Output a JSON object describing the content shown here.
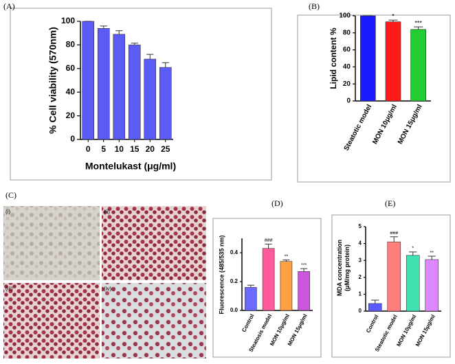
{
  "chart_data": [
    {
      "type": "bar",
      "panel": "(A)",
      "ylabel": "% Cell viability (570nm)",
      "xlabel": "Montelukast (μg/ml)",
      "categories": [
        "0",
        "5",
        "10",
        "15",
        "20",
        "25"
      ],
      "values": [
        100,
        94,
        89,
        80,
        68,
        61
      ],
      "errors": [
        0,
        2,
        3,
        1.5,
        4,
        4
      ],
      "color": "#5b5bf5",
      "ylim": [
        0,
        100
      ],
      "yticks": [
        0,
        20,
        40,
        60,
        80,
        100
      ]
    },
    {
      "type": "bar",
      "panel": "(B)",
      "ylabel": "Lipid content %",
      "categories": [
        "Steatotic model",
        "MON 10μg/ml",
        "MON 15μg/ml"
      ],
      "values": [
        100,
        93,
        84
      ],
      "errors": [
        0,
        2,
        3
      ],
      "colors": [
        "#1a1aff",
        "#ff1a1a",
        "#22cc33"
      ],
      "annotations": [
        null,
        "*",
        "***"
      ],
      "ylim": [
        0,
        100
      ],
      "yticks": [
        0,
        20,
        40,
        60,
        80,
        100
      ]
    },
    {
      "type": "bar",
      "panel": "(D)",
      "ylabel": "Fluorescence (485/535 nm)",
      "categories": [
        "Control",
        "Steatosis model",
        "MON 10μg/ml",
        "MON 15μg/ml"
      ],
      "values": [
        0.16,
        0.43,
        0.34,
        0.27
      ],
      "errors": [
        0.015,
        0.03,
        0.01,
        0.02
      ],
      "colors": [
        "#6a6aff",
        "#ff5a9a",
        "#ffa040",
        "#cc55dd"
      ],
      "annotations": [
        null,
        "###",
        "**",
        "***"
      ],
      "ylim": [
        0,
        0.5
      ],
      "yticks": [
        {
          "value": 0,
          "label": "0.0"
        },
        0.2,
        0.4
      ]
    },
    {
      "type": "bar",
      "panel": "(E)",
      "ylabel": [
        "MDA concentration",
        "(μM/mg protein)"
      ],
      "categories": [
        "Control",
        "Steatotic model",
        "MON 10μg/ml",
        "MON 15μg/ml"
      ],
      "values": [
        0.45,
        4.1,
        3.3,
        3.05
      ],
      "errors": [
        0.2,
        0.3,
        0.2,
        0.2
      ],
      "colors": [
        "#5a5aff",
        "#ff7f7f",
        "#40e0b0",
        "#dd88ff"
      ],
      "annotations": [
        null,
        "###",
        "*",
        "**"
      ],
      "ylim": [
        0,
        5
      ],
      "yticks": [
        0,
        1,
        2,
        3,
        4,
        5
      ]
    }
  ],
  "image_panel": {
    "label": "(C)",
    "images": [
      "(i)",
      "(ii)",
      "(iii)",
      "(iv)"
    ]
  }
}
